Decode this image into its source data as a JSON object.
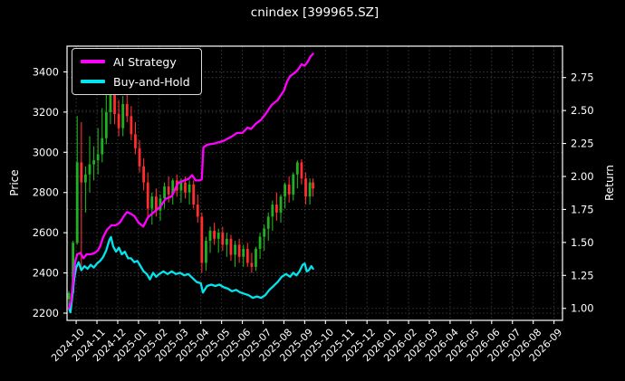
{
  "title": "cnindex [399965.SZ]",
  "axes": {
    "left_label": "Price",
    "right_label": "Return",
    "x_tick_labels": [
      "2024-10",
      "2024-11",
      "2024-12",
      "2025-01",
      "2025-02",
      "2025-03",
      "2025-04",
      "2025-05",
      "2025-06",
      "2025-07",
      "2025-08",
      "2025-09",
      "2025-10",
      "2025-11",
      "2025-12",
      "2026-01",
      "2026-02",
      "2026-03",
      "2026-04",
      "2026-05",
      "2026-06",
      "2026-07",
      "2026-08",
      "2026-09"
    ],
    "price_ticks": [
      {
        "v": 2200,
        "label": "2200"
      },
      {
        "v": 2400,
        "label": "2400"
      },
      {
        "v": 2600,
        "label": "2600"
      },
      {
        "v": 2800,
        "label": "2800"
      },
      {
        "v": 3000,
        "label": "3000"
      },
      {
        "v": 3200,
        "label": "3200"
      },
      {
        "v": 3400,
        "label": "3400"
      }
    ],
    "return_ticks": [
      {
        "v": 1.0,
        "label": "1.00"
      },
      {
        "v": 1.25,
        "label": "1.25"
      },
      {
        "v": 1.5,
        "label": "1.50"
      },
      {
        "v": 1.75,
        "label": "1.75"
      },
      {
        "v": 2.0,
        "label": "2.00"
      },
      {
        "v": 2.25,
        "label": "2.25"
      },
      {
        "v": 2.5,
        "label": "2.50"
      },
      {
        "v": 2.75,
        "label": "2.75"
      }
    ]
  },
  "legend": {
    "items": [
      {
        "label": "AI Strategy",
        "color": "#ff00ff"
      },
      {
        "label": "Buy-and-Hold",
        "color": "#00e5ee"
      }
    ]
  },
  "colors": {
    "background": "#000000",
    "text": "#ffffff",
    "grid": "#454545",
    "spine": "#ffffff",
    "candle_up": "#1fb11f",
    "candle_down": "#ff2d2d",
    "ai_strategy": "#ff00ff",
    "buy_and_hold": "#00e5ee"
  },
  "chart_data": {
    "type": "candlestick+line",
    "title": "cnindex [399965.SZ]",
    "x_unit": "months_since_2024-10-01",
    "x_lim": [
      -0.44,
      23.41
    ],
    "price_ylim": [
      2164,
      3528
    ],
    "return_ylim": [
      0.909,
      2.988
    ],
    "grid": true,
    "legend_position": "upper-left",
    "candles_ohlc_note": "each entry is [month_index, open, high, low, close]",
    "candles": [
      [
        -0.35,
        2270,
        2310,
        2230,
        2300
      ],
      [
        -0.15,
        2300,
        2560,
        2290,
        2550
      ],
      [
        0.05,
        2550,
        3180,
        2540,
        2950
      ],
      [
        0.25,
        2950,
        3150,
        2410,
        2850
      ],
      [
        0.45,
        2850,
        2930,
        2700,
        2890
      ],
      [
        0.65,
        2890,
        3080,
        2800,
        2940
      ],
      [
        0.85,
        2940,
        3030,
        2860,
        2960
      ],
      [
        1.05,
        2960,
        3120,
        2890,
        2990
      ],
      [
        1.25,
        2990,
        3220,
        2950,
        3070
      ],
      [
        1.45,
        3070,
        3300,
        3040,
        3200
      ],
      [
        1.65,
        3200,
        3300,
        3140,
        3290
      ],
      [
        1.85,
        3290,
        3300,
        3140,
        3190
      ],
      [
        2.05,
        3190,
        3260,
        3080,
        3120
      ],
      [
        2.25,
        3120,
        3280,
        3080,
        3240
      ],
      [
        2.45,
        3240,
        3290,
        3150,
        3180
      ],
      [
        2.65,
        3180,
        3230,
        3060,
        3090
      ],
      [
        2.85,
        3090,
        3150,
        2990,
        3020
      ],
      [
        3.05,
        3020,
        3060,
        2900,
        2930
      ],
      [
        3.25,
        2930,
        2970,
        2810,
        2850
      ],
      [
        3.45,
        2850,
        2900,
        2680,
        2720
      ],
      [
        3.65,
        2720,
        2800,
        2640,
        2780
      ],
      [
        3.85,
        2780,
        2820,
        2680,
        2710
      ],
      [
        4.05,
        2710,
        2790,
        2660,
        2770
      ],
      [
        4.25,
        2770,
        2850,
        2720,
        2830
      ],
      [
        4.45,
        2830,
        2880,
        2750,
        2790
      ],
      [
        4.65,
        2790,
        2870,
        2740,
        2860
      ],
      [
        4.85,
        2860,
        2890,
        2780,
        2810
      ],
      [
        5.05,
        2810,
        2870,
        2750,
        2850
      ],
      [
        5.25,
        2850,
        2880,
        2770,
        2800
      ],
      [
        5.45,
        2800,
        2860,
        2740,
        2840
      ],
      [
        5.65,
        2840,
        2860,
        2720,
        2740
      ],
      [
        5.85,
        2740,
        2790,
        2650,
        2680
      ],
      [
        6.05,
        2680,
        2700,
        2400,
        2450
      ],
      [
        6.25,
        2450,
        2580,
        2410,
        2560
      ],
      [
        6.45,
        2560,
        2630,
        2500,
        2610
      ],
      [
        6.65,
        2610,
        2650,
        2540,
        2570
      ],
      [
        6.85,
        2570,
        2620,
        2500,
        2600
      ],
      [
        7.05,
        2600,
        2630,
        2510,
        2540
      ],
      [
        7.25,
        2540,
        2600,
        2480,
        2570
      ],
      [
        7.45,
        2570,
        2590,
        2460,
        2490
      ],
      [
        7.65,
        2490,
        2560,
        2430,
        2540
      ],
      [
        7.85,
        2540,
        2570,
        2450,
        2480
      ],
      [
        8.05,
        2480,
        2540,
        2430,
        2520
      ],
      [
        8.25,
        2520,
        2550,
        2430,
        2450
      ],
      [
        8.45,
        2450,
        2500,
        2400,
        2430
      ],
      [
        8.65,
        2430,
        2530,
        2410,
        2520
      ],
      [
        8.85,
        2520,
        2600,
        2470,
        2580
      ],
      [
        9.05,
        2580,
        2640,
        2510,
        2620
      ],
      [
        9.25,
        2620,
        2700,
        2560,
        2680
      ],
      [
        9.45,
        2680,
        2760,
        2610,
        2740
      ],
      [
        9.65,
        2740,
        2800,
        2660,
        2700
      ],
      [
        9.85,
        2700,
        2790,
        2650,
        2780
      ],
      [
        10.05,
        2780,
        2850,
        2720,
        2840
      ],
      [
        10.25,
        2840,
        2880,
        2750,
        2790
      ],
      [
        10.45,
        2790,
        2900,
        2760,
        2890
      ],
      [
        10.65,
        2890,
        2960,
        2820,
        2950
      ],
      [
        10.85,
        2950,
        2965,
        2840,
        2870
      ],
      [
        11.05,
        2870,
        2900,
        2740,
        2780
      ],
      [
        11.25,
        2780,
        2870,
        2740,
        2850
      ],
      [
        11.4,
        2850,
        2870,
        2780,
        2820
      ]
    ],
    "series": [
      {
        "name": "AI Strategy",
        "axis": "return",
        "color": "#ff00ff",
        "points": [
          [
            -0.35,
            1.0
          ],
          [
            -0.25,
            1.05
          ],
          [
            -0.15,
            1.2
          ],
          [
            -0.05,
            1.35
          ],
          [
            0.05,
            1.41
          ],
          [
            0.2,
            1.42
          ],
          [
            0.35,
            1.38
          ],
          [
            0.5,
            1.41
          ],
          [
            0.7,
            1.41
          ],
          [
            0.9,
            1.42
          ],
          [
            1.05,
            1.44
          ],
          [
            1.15,
            1.47
          ],
          [
            1.3,
            1.54
          ],
          [
            1.5,
            1.6
          ],
          [
            1.7,
            1.63
          ],
          [
            1.9,
            1.63
          ],
          [
            2.1,
            1.65
          ],
          [
            2.3,
            1.7
          ],
          [
            2.45,
            1.73
          ],
          [
            2.6,
            1.72
          ],
          [
            2.8,
            1.7
          ],
          [
            3.0,
            1.65
          ],
          [
            3.23,
            1.62
          ],
          [
            3.45,
            1.69
          ],
          [
            3.75,
            1.73
          ],
          [
            4.05,
            1.77
          ],
          [
            4.3,
            1.83
          ],
          [
            4.6,
            1.85
          ],
          [
            4.9,
            1.95
          ],
          [
            5.2,
            1.97
          ],
          [
            5.4,
            1.98
          ],
          [
            5.58,
            2.01
          ],
          [
            5.75,
            1.97
          ],
          [
            5.95,
            1.97
          ],
          [
            6.05,
            1.98
          ],
          [
            6.12,
            2.22
          ],
          [
            6.3,
            2.24
          ],
          [
            6.65,
            2.25
          ],
          [
            7.1,
            2.27
          ],
          [
            7.45,
            2.3
          ],
          [
            7.75,
            2.33
          ],
          [
            8.0,
            2.33
          ],
          [
            8.25,
            2.37
          ],
          [
            8.42,
            2.36
          ],
          [
            8.65,
            2.4
          ],
          [
            8.9,
            2.43
          ],
          [
            9.1,
            2.47
          ],
          [
            9.4,
            2.54
          ],
          [
            9.7,
            2.58
          ],
          [
            10.0,
            2.65
          ],
          [
            10.15,
            2.72
          ],
          [
            10.3,
            2.76
          ],
          [
            10.55,
            2.79
          ],
          [
            10.72,
            2.82
          ],
          [
            10.85,
            2.85
          ],
          [
            11.0,
            2.84
          ],
          [
            11.15,
            2.87
          ],
          [
            11.28,
            2.91
          ],
          [
            11.4,
            2.93
          ]
        ]
      },
      {
        "name": "Buy-and-Hold",
        "axis": "return",
        "color": "#00e5ee",
        "points": [
          [
            -0.35,
            1.0
          ],
          [
            -0.28,
            0.97
          ],
          [
            -0.2,
            1.07
          ],
          [
            -0.1,
            1.22
          ],
          [
            0.0,
            1.31
          ],
          [
            0.12,
            1.35
          ],
          [
            0.25,
            1.29
          ],
          [
            0.4,
            1.32
          ],
          [
            0.55,
            1.3
          ],
          [
            0.7,
            1.33
          ],
          [
            0.85,
            1.31
          ],
          [
            1.0,
            1.34
          ],
          [
            1.15,
            1.36
          ],
          [
            1.3,
            1.39
          ],
          [
            1.45,
            1.44
          ],
          [
            1.6,
            1.52
          ],
          [
            1.68,
            1.54
          ],
          [
            1.78,
            1.47
          ],
          [
            1.92,
            1.43
          ],
          [
            2.06,
            1.46
          ],
          [
            2.2,
            1.41
          ],
          [
            2.34,
            1.43
          ],
          [
            2.5,
            1.38
          ],
          [
            2.64,
            1.38
          ],
          [
            2.8,
            1.35
          ],
          [
            2.95,
            1.36
          ],
          [
            3.1,
            1.32
          ],
          [
            3.25,
            1.28
          ],
          [
            3.4,
            1.26
          ],
          [
            3.55,
            1.22
          ],
          [
            3.7,
            1.27
          ],
          [
            3.85,
            1.24
          ],
          [
            4.0,
            1.26
          ],
          [
            4.2,
            1.28
          ],
          [
            4.4,
            1.26
          ],
          [
            4.6,
            1.28
          ],
          [
            4.8,
            1.26
          ],
          [
            5.0,
            1.27
          ],
          [
            5.2,
            1.25
          ],
          [
            5.4,
            1.26
          ],
          [
            5.6,
            1.23
          ],
          [
            5.8,
            1.2
          ],
          [
            6.0,
            1.19
          ],
          [
            6.1,
            1.12
          ],
          [
            6.3,
            1.17
          ],
          [
            6.5,
            1.18
          ],
          [
            6.7,
            1.17
          ],
          [
            6.9,
            1.18
          ],
          [
            7.1,
            1.16
          ],
          [
            7.3,
            1.15
          ],
          [
            7.5,
            1.13
          ],
          [
            7.7,
            1.14
          ],
          [
            7.9,
            1.12
          ],
          [
            8.1,
            1.11
          ],
          [
            8.3,
            1.1
          ],
          [
            8.5,
            1.08
          ],
          [
            8.7,
            1.09
          ],
          [
            8.9,
            1.08
          ],
          [
            9.1,
            1.1
          ],
          [
            9.3,
            1.14
          ],
          [
            9.5,
            1.17
          ],
          [
            9.7,
            1.2
          ],
          [
            9.9,
            1.24
          ],
          [
            10.1,
            1.26
          ],
          [
            10.3,
            1.24
          ],
          [
            10.45,
            1.27
          ],
          [
            10.6,
            1.25
          ],
          [
            10.75,
            1.28
          ],
          [
            10.9,
            1.33
          ],
          [
            11.0,
            1.34
          ],
          [
            11.1,
            1.28
          ],
          [
            11.2,
            1.29
          ],
          [
            11.32,
            1.32
          ],
          [
            11.4,
            1.3
          ]
        ]
      }
    ]
  }
}
